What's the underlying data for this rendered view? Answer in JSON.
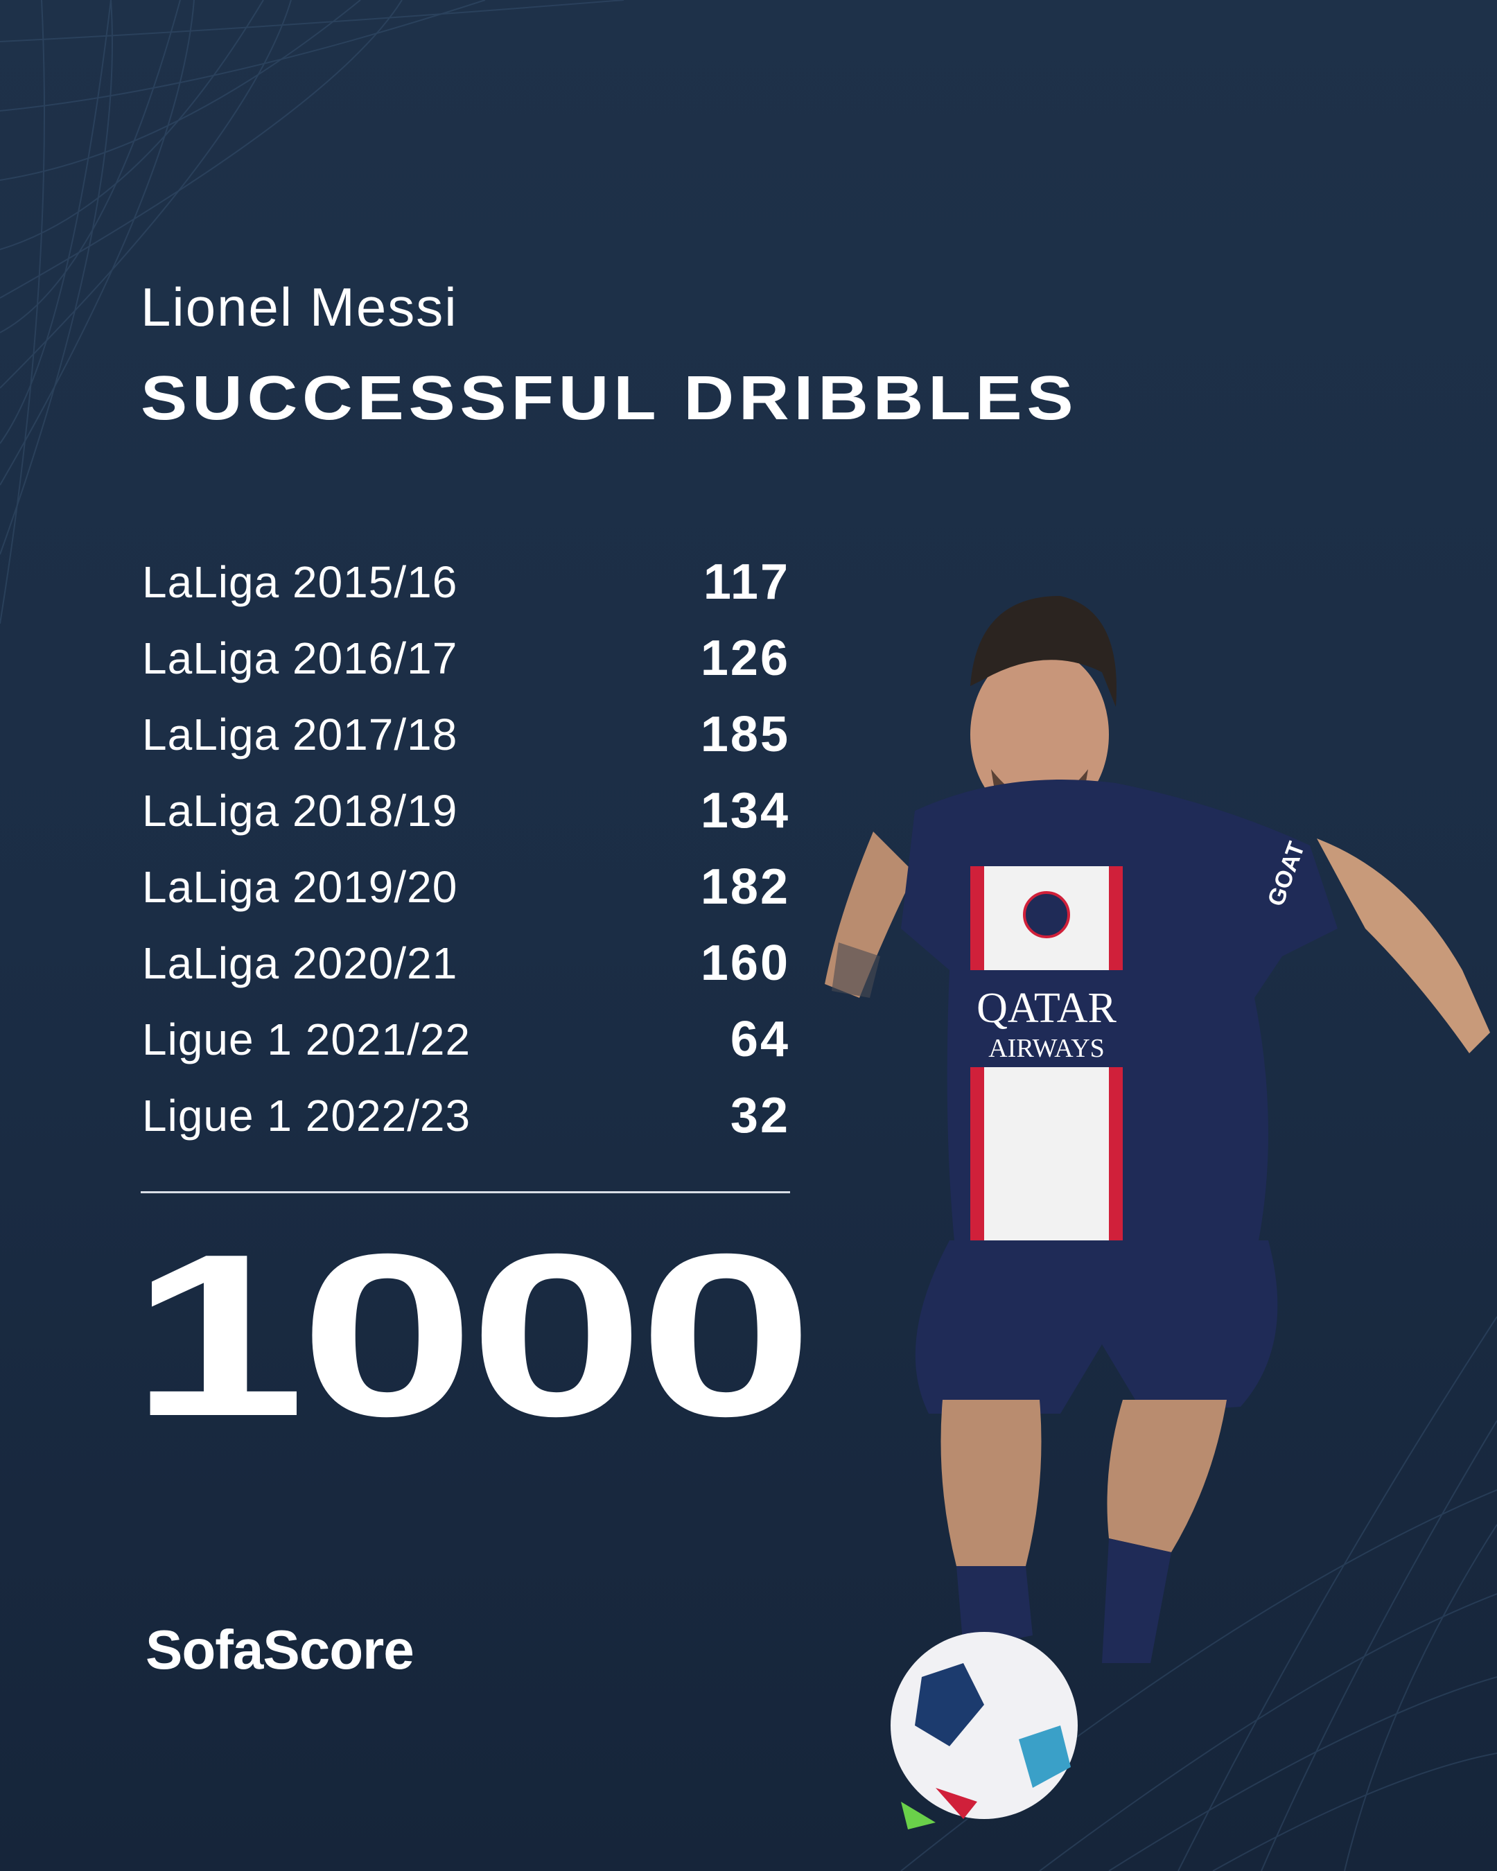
{
  "header": {
    "player_name": "Lionel Messi",
    "title": "SUCCESSFUL DRIBBLES"
  },
  "seasons": [
    {
      "label": "LaLiga 2015/16",
      "value": "117"
    },
    {
      "label": "LaLiga 2016/17",
      "value": "126"
    },
    {
      "label": "LaLiga 2017/18",
      "value": "185"
    },
    {
      "label": "LaLiga 2018/19",
      "value": "134"
    },
    {
      "label": "LaLiga 2019/20",
      "value": "182"
    },
    {
      "label": "LaLiga 2020/21",
      "value": "160"
    },
    {
      "label": "Ligue 1 2021/22",
      "value": "64"
    },
    {
      "label": "Ligue 1 2022/23",
      "value": "32"
    }
  ],
  "total": "1000",
  "brand": "SofaScore",
  "photo": {
    "sponsor": "QATAR AIRWAYS",
    "sleeve_text": "GOAT"
  },
  "colors": {
    "background": "#1d3049",
    "text": "#ffffff",
    "kit_navy": "#1f2b57",
    "kit_red": "#d0203a"
  }
}
